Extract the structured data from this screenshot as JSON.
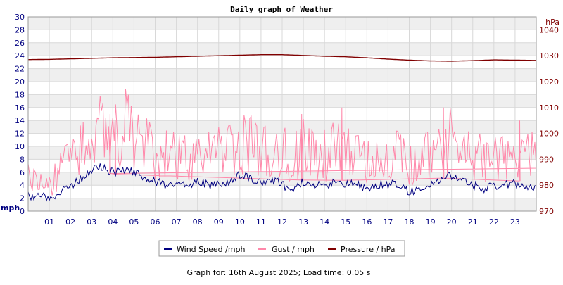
{
  "chart_data": {
    "type": "line",
    "title": "Daily graph of Weather",
    "left_axis": {
      "label": "mph",
      "ylim": [
        0,
        30
      ],
      "ticks": [
        0,
        2,
        4,
        6,
        8,
        10,
        12,
        14,
        16,
        18,
        20,
        22,
        24,
        26,
        28,
        30
      ],
      "color": "#000080"
    },
    "right_axis": {
      "label": "hPa",
      "ylim": [
        970,
        1045
      ],
      "ticks": [
        970,
        980,
        990,
        1000,
        1010,
        1020,
        1030,
        1040
      ],
      "color": "#800000"
    },
    "x_axis": {
      "xlim": [
        0,
        24
      ],
      "tick_labels": [
        "01",
        "02",
        "03",
        "04",
        "05",
        "06",
        "07",
        "08",
        "09",
        "10",
        "11",
        "12",
        "13",
        "14",
        "15",
        "16",
        "17",
        "18",
        "19",
        "20",
        "21",
        "22",
        "23"
      ]
    },
    "grid": true,
    "legend_position": "bottom-center",
    "series": [
      {
        "name": "Wind Speed /mph",
        "axis": "left",
        "color": "#000080",
        "x": [
          0,
          1,
          1.5,
          2,
          2.5,
          3,
          3.5,
          4,
          4.5,
          5,
          5.5,
          6,
          6.5,
          7,
          7.5,
          8,
          8.5,
          9,
          9.5,
          10,
          10.5,
          11,
          11.5,
          12,
          12.5,
          13,
          13.5,
          14,
          14.5,
          15,
          15.5,
          16,
          16.5,
          17,
          17.5,
          18,
          18.5,
          19,
          19.5,
          20,
          20.5,
          21,
          21.5,
          22,
          22.5,
          23,
          23.5,
          24
        ],
        "values": [
          2.5,
          2.0,
          3.0,
          4.0,
          5.0,
          6.5,
          7.0,
          6.0,
          6.5,
          6.0,
          5.0,
          4.5,
          4.0,
          4.2,
          4.0,
          4.5,
          4.0,
          4.2,
          4.5,
          5.5,
          5.0,
          4.5,
          5.0,
          4.0,
          3.5,
          4.5,
          4.0,
          3.8,
          4.5,
          4.2,
          4.0,
          3.5,
          4.0,
          4.2,
          4.0,
          3.0,
          3.5,
          4.0,
          5.0,
          5.5,
          4.5,
          4.0,
          3.5,
          3.8,
          4.0,
          4.2,
          4.0,
          3.5
        ]
      },
      {
        "name": "Gust / mph",
        "axis": "left",
        "color": "#ff88aa",
        "x": [
          0,
          1,
          1.5,
          2,
          2.5,
          3,
          3.5,
          4,
          4.5,
          5,
          5.5,
          6,
          6.5,
          7,
          7.5,
          8,
          8.5,
          9,
          9.5,
          10,
          10.5,
          11,
          11.5,
          12,
          12.5,
          13,
          13.5,
          14,
          14.5,
          15,
          15.5,
          16,
          16.5,
          17,
          17.5,
          18,
          18.5,
          19,
          19.5,
          20,
          20.5,
          21,
          21.5,
          22,
          22.5,
          23,
          23.5,
          24
        ],
        "values": [
          5.0,
          4.0,
          6.0,
          8.0,
          10.0,
          12.0,
          13.0,
          11.0,
          13.0,
          12.0,
          10.0,
          9.0,
          8.5,
          8.5,
          8.0,
          9.0,
          8.5,
          9.0,
          9.0,
          11.0,
          10.0,
          9.0,
          10.0,
          9.0,
          8.0,
          10.0,
          9.0,
          8.5,
          9.5,
          9.5,
          8.5,
          8.0,
          8.5,
          9.0,
          8.5,
          7.0,
          8.0,
          9.0,
          10.0,
          11.0,
          9.0,
          8.5,
          8.0,
          8.5,
          9.0,
          9.5,
          9.0,
          8.0
        ],
        "peaks": [
          {
            "x": 3.85,
            "value": 15
          },
          {
            "x": 4.1,
            "value": 14
          },
          {
            "x": 12.9,
            "value": 15
          },
          {
            "x": 14.8,
            "value": 16
          },
          {
            "x": 19.6,
            "value": 16
          },
          {
            "x": 23.2,
            "value": 14
          }
        ]
      },
      {
        "name": "Pressure / hPa",
        "axis": "right",
        "color": "#800000",
        "x": [
          0,
          1,
          2,
          3,
          4,
          5,
          6,
          7,
          8,
          9,
          10,
          11,
          12,
          13,
          14,
          15,
          16,
          17,
          18,
          19,
          20,
          21,
          22,
          23,
          24
        ],
        "values": [
          1028.5,
          1028.6,
          1028.8,
          1029.0,
          1029.2,
          1029.3,
          1029.4,
          1029.6,
          1029.8,
          1030.0,
          1030.2,
          1030.4,
          1030.4,
          1030.1,
          1029.8,
          1029.6,
          1029.2,
          1028.7,
          1028.3,
          1028.0,
          1027.9,
          1028.1,
          1028.4,
          1028.3,
          1028.2
        ]
      }
    ]
  },
  "legend": {
    "items": [
      {
        "label": "Wind Speed /mph",
        "color": "#000080"
      },
      {
        "label": "Gust / mph",
        "color": "#ff88aa"
      },
      {
        "label": "Pressure / hPa",
        "color": "#800000"
      }
    ]
  },
  "footer": {
    "text": "Graph for: 16th August 2025; Load time: 0.05 s"
  }
}
